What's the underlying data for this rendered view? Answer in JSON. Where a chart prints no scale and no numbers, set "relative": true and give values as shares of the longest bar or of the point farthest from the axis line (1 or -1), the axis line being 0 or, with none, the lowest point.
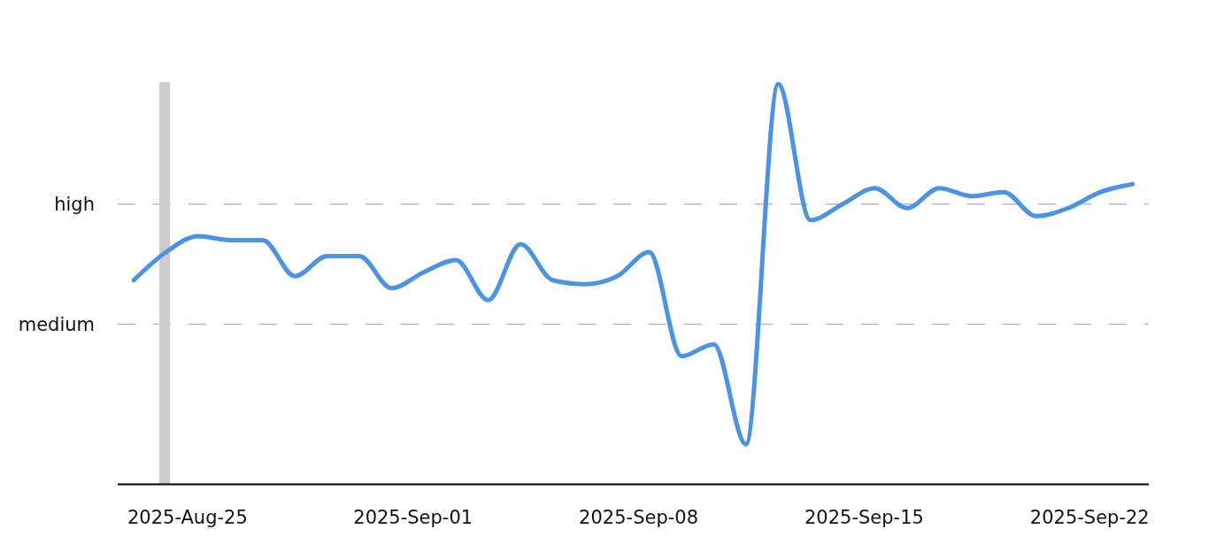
{
  "chart_data": {
    "type": "line",
    "relative": true,
    "x": [
      "2025-08-23T08:00",
      "2025-08-24T08:00",
      "2025-08-25T08:00",
      "2025-08-26T08:00",
      "2025-08-27T08:00",
      "2025-08-28T08:00",
      "2025-08-29T08:00",
      "2025-08-30T08:00",
      "2025-08-31T08:00",
      "2025-09-01T08:00",
      "2025-09-02T08:00",
      "2025-09-03T08:00",
      "2025-09-04T08:00",
      "2025-09-05T08:00",
      "2025-09-06T08:00",
      "2025-09-07T08:00",
      "2025-09-08T08:00",
      "2025-09-09T08:00",
      "2025-09-10T08:00",
      "2025-09-11T08:00",
      "2025-09-12T08:00",
      "2025-09-13T08:00",
      "2025-09-14T08:00",
      "2025-09-15T08:00",
      "2025-09-16T08:00",
      "2025-09-17T08:00",
      "2025-09-18T08:00",
      "2025-09-19T08:00",
      "2025-09-20T08:00",
      "2025-09-21T08:00",
      "2025-09-22T08:00",
      "2025-09-23T08:00"
    ],
    "series": [
      {
        "color": "#4a93e6",
        "values": [
          0.51,
          0.58,
          0.62,
          0.61,
          0.61,
          0.52,
          0.57,
          0.57,
          0.49,
          0.53,
          0.56,
          0.46,
          0.6,
          0.51,
          0.5,
          0.52,
          0.58,
          0.32,
          0.35,
          0.1,
          1,
          0.66,
          0.7,
          0.74,
          0.69,
          0.74,
          0.72,
          0.73,
          0.67,
          0.69,
          0.73,
          0.75
        ]
      }
    ],
    "xlim": [
      "2025-08-22T20:00",
      "2025-09-23T20:00"
    ],
    "xticks": [
      {
        "value": "2025-08-25",
        "label": "2025-Aug-25"
      },
      {
        "value": "2025-09-01",
        "label": "2025-Sep-01"
      },
      {
        "value": "2025-09-08",
        "label": "2025-Sep-08"
      },
      {
        "value": "2025-09-15",
        "label": "2025-Sep-15"
      },
      {
        "value": "2025-09-22",
        "label": "2025-Sep-22"
      }
    ],
    "ref_lines": [
      {
        "axis": "y",
        "value": 0.7,
        "label": "high",
        "color": "#bbbbbb",
        "line_style": "dashed"
      },
      {
        "axis": "y",
        "value": 0.4,
        "label": "medium",
        "color": "#bbbbbb",
        "line_style": "dashed"
      },
      {
        "axis": "x",
        "value": "2025-08-24T07:00",
        "color": "#cccccc"
      }
    ]
  }
}
